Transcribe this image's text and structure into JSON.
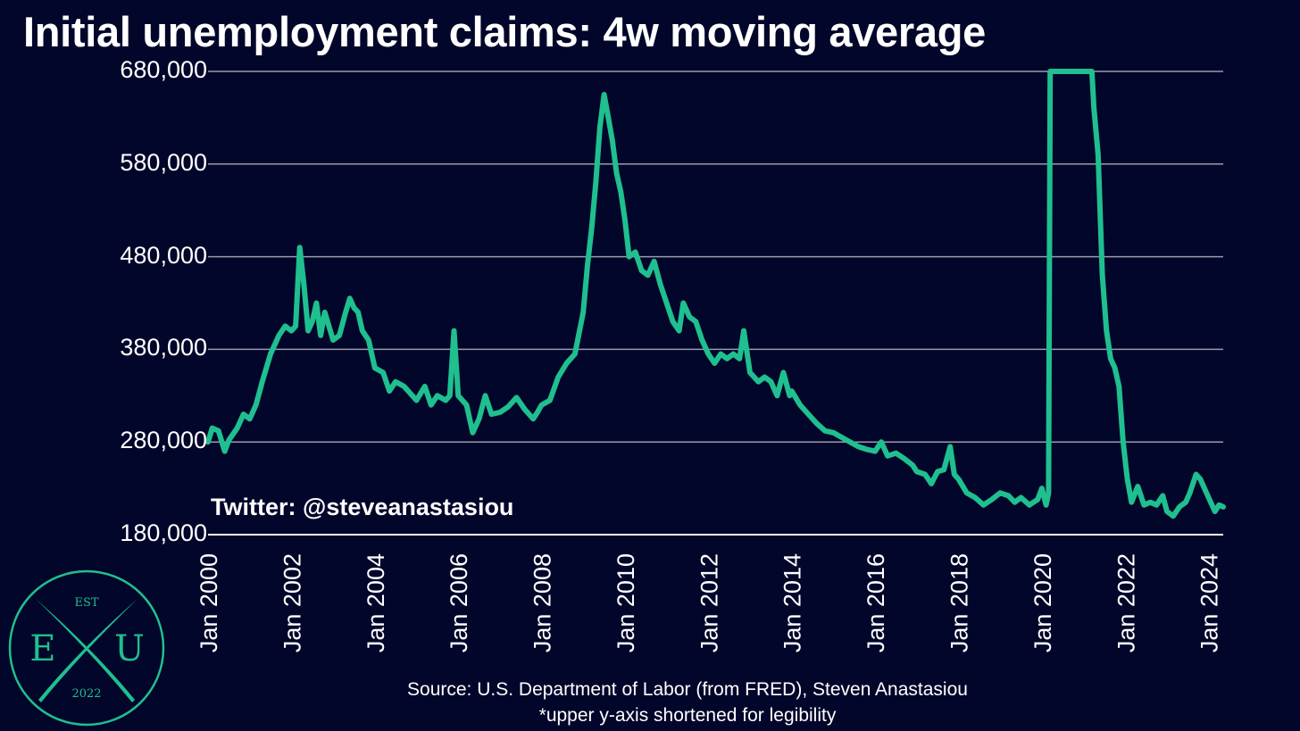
{
  "title": "Initial unemployment claims: 4w moving average",
  "watermark": "Twitter: @steveanastasiou",
  "source": "Source: U.S. Department of Labor (from FRED), Steven Anastasiou",
  "note": "*upper y-axis shortened for legibility",
  "logo": {
    "top": "EST",
    "left": "E",
    "right": "U",
    "bottom": "2022",
    "color": "#1fbf8f"
  },
  "colors": {
    "background": "#02062a",
    "line": "#1fbf8f",
    "grid": "#9a9aac",
    "text": "#ffffff"
  },
  "chart_data": {
    "type": "line",
    "title": "Initial unemployment claims: 4w moving average",
    "xlabel": "",
    "ylabel": "",
    "ylim": [
      180000,
      680000
    ],
    "yticks": [
      180000,
      280000,
      380000,
      480000,
      580000,
      680000
    ],
    "ytick_labels": [
      "180,000",
      "280,000",
      "380,000",
      "480,000",
      "580,000",
      "680,000"
    ],
    "xlim": [
      2000.0,
      2024.35
    ],
    "xticks": [
      2000,
      2002,
      2004,
      2006,
      2008,
      2010,
      2012,
      2014,
      2016,
      2018,
      2020,
      2022,
      2024
    ],
    "xtick_labels": [
      "Jan 2000",
      "Jan 2002",
      "Jan 2004",
      "Jan 2006",
      "Jan 2008",
      "Jan 2010",
      "Jan 2012",
      "Jan 2014",
      "Jan 2016",
      "Jan 2018",
      "Jan 2020",
      "Jan 2022",
      "Jan 2024"
    ],
    "grid": true,
    "series": [
      {
        "points": [
          [
            2000.0,
            280000
          ],
          [
            2000.1,
            295000
          ],
          [
            2000.25,
            292000
          ],
          [
            2000.4,
            270000
          ],
          [
            2000.5,
            282000
          ],
          [
            2000.7,
            295000
          ],
          [
            2000.85,
            310000
          ],
          [
            2001.0,
            305000
          ],
          [
            2001.15,
            320000
          ],
          [
            2001.3,
            345000
          ],
          [
            2001.5,
            375000
          ],
          [
            2001.7,
            395000
          ],
          [
            2001.85,
            405000
          ],
          [
            2002.0,
            400000
          ],
          [
            2002.1,
            405000
          ],
          [
            2002.2,
            490000
          ],
          [
            2002.3,
            450000
          ],
          [
            2002.4,
            400000
          ],
          [
            2002.5,
            410000
          ],
          [
            2002.6,
            430000
          ],
          [
            2002.7,
            395000
          ],
          [
            2002.8,
            420000
          ],
          [
            2002.9,
            405000
          ],
          [
            2003.0,
            390000
          ],
          [
            2003.15,
            395000
          ],
          [
            2003.3,
            420000
          ],
          [
            2003.4,
            435000
          ],
          [
            2003.5,
            425000
          ],
          [
            2003.6,
            420000
          ],
          [
            2003.7,
            400000
          ],
          [
            2003.85,
            390000
          ],
          [
            2004.0,
            360000
          ],
          [
            2004.2,
            355000
          ],
          [
            2004.35,
            335000
          ],
          [
            2004.5,
            345000
          ],
          [
            2004.7,
            340000
          ],
          [
            2004.9,
            330000
          ],
          [
            2005.0,
            325000
          ],
          [
            2005.2,
            340000
          ],
          [
            2005.35,
            320000
          ],
          [
            2005.5,
            330000
          ],
          [
            2005.7,
            325000
          ],
          [
            2005.8,
            330000
          ],
          [
            2005.9,
            400000
          ],
          [
            2006.0,
            330000
          ],
          [
            2006.2,
            320000
          ],
          [
            2006.35,
            290000
          ],
          [
            2006.5,
            305000
          ],
          [
            2006.65,
            330000
          ],
          [
            2006.8,
            310000
          ],
          [
            2007.0,
            312000
          ],
          [
            2007.2,
            318000
          ],
          [
            2007.4,
            328000
          ],
          [
            2007.6,
            315000
          ],
          [
            2007.8,
            305000
          ],
          [
            2007.9,
            312000
          ],
          [
            2008.0,
            320000
          ],
          [
            2008.2,
            325000
          ],
          [
            2008.4,
            350000
          ],
          [
            2008.6,
            365000
          ],
          [
            2008.8,
            375000
          ],
          [
            2009.0,
            420000
          ],
          [
            2009.1,
            470000
          ],
          [
            2009.2,
            510000
          ],
          [
            2009.3,
            560000
          ],
          [
            2009.4,
            620000
          ],
          [
            2009.5,
            655000
          ],
          [
            2009.6,
            630000
          ],
          [
            2009.7,
            605000
          ],
          [
            2009.8,
            570000
          ],
          [
            2009.9,
            550000
          ],
          [
            2010.0,
            520000
          ],
          [
            2010.1,
            480000
          ],
          [
            2010.25,
            485000
          ],
          [
            2010.4,
            465000
          ],
          [
            2010.55,
            460000
          ],
          [
            2010.7,
            475000
          ],
          [
            2010.85,
            450000
          ],
          [
            2011.0,
            430000
          ],
          [
            2011.15,
            410000
          ],
          [
            2011.3,
            400000
          ],
          [
            2011.4,
            430000
          ],
          [
            2011.55,
            415000
          ],
          [
            2011.7,
            410000
          ],
          [
            2011.85,
            390000
          ],
          [
            2012.0,
            375000
          ],
          [
            2012.15,
            365000
          ],
          [
            2012.3,
            375000
          ],
          [
            2012.45,
            370000
          ],
          [
            2012.6,
            375000
          ],
          [
            2012.75,
            370000
          ],
          [
            2012.85,
            400000
          ],
          [
            2013.0,
            355000
          ],
          [
            2013.2,
            345000
          ],
          [
            2013.35,
            350000
          ],
          [
            2013.5,
            345000
          ],
          [
            2013.65,
            330000
          ],
          [
            2013.8,
            355000
          ],
          [
            2013.95,
            330000
          ],
          [
            2014.0,
            335000
          ],
          [
            2014.2,
            320000
          ],
          [
            2014.4,
            310000
          ],
          [
            2014.6,
            300000
          ],
          [
            2014.8,
            292000
          ],
          [
            2015.0,
            290000
          ],
          [
            2015.2,
            285000
          ],
          [
            2015.4,
            280000
          ],
          [
            2015.6,
            275000
          ],
          [
            2015.8,
            272000
          ],
          [
            2016.0,
            270000
          ],
          [
            2016.15,
            280000
          ],
          [
            2016.3,
            265000
          ],
          [
            2016.5,
            268000
          ],
          [
            2016.7,
            262000
          ],
          [
            2016.9,
            255000
          ],
          [
            2017.0,
            248000
          ],
          [
            2017.2,
            245000
          ],
          [
            2017.35,
            235000
          ],
          [
            2017.5,
            248000
          ],
          [
            2017.65,
            250000
          ],
          [
            2017.8,
            275000
          ],
          [
            2017.9,
            245000
          ],
          [
            2018.0,
            240000
          ],
          [
            2018.2,
            225000
          ],
          [
            2018.4,
            220000
          ],
          [
            2018.6,
            212000
          ],
          [
            2018.8,
            218000
          ],
          [
            2019.0,
            225000
          ],
          [
            2019.2,
            222000
          ],
          [
            2019.35,
            215000
          ],
          [
            2019.5,
            220000
          ],
          [
            2019.7,
            212000
          ],
          [
            2019.9,
            218000
          ],
          [
            2020.0,
            230000
          ],
          [
            2020.1,
            212000
          ],
          [
            2020.16,
            225000
          ],
          [
            2020.2,
            680000
          ],
          [
            2021.2,
            680000
          ],
          [
            2021.25,
            640000
          ],
          [
            2021.35,
            590000
          ],
          [
            2021.45,
            460000
          ],
          [
            2021.55,
            400000
          ],
          [
            2021.65,
            370000
          ],
          [
            2021.75,
            360000
          ],
          [
            2021.85,
            340000
          ],
          [
            2021.95,
            280000
          ],
          [
            2022.05,
            240000
          ],
          [
            2022.15,
            215000
          ],
          [
            2022.3,
            232000
          ],
          [
            2022.45,
            212000
          ],
          [
            2022.6,
            215000
          ],
          [
            2022.75,
            212000
          ],
          [
            2022.9,
            222000
          ],
          [
            2023.0,
            205000
          ],
          [
            2023.15,
            200000
          ],
          [
            2023.3,
            210000
          ],
          [
            2023.45,
            215000
          ],
          [
            2023.55,
            225000
          ],
          [
            2023.7,
            245000
          ],
          [
            2023.8,
            240000
          ],
          [
            2023.95,
            225000
          ],
          [
            2024.05,
            215000
          ],
          [
            2024.15,
            205000
          ],
          [
            2024.25,
            212000
          ],
          [
            2024.35,
            210000
          ]
        ]
      }
    ]
  }
}
